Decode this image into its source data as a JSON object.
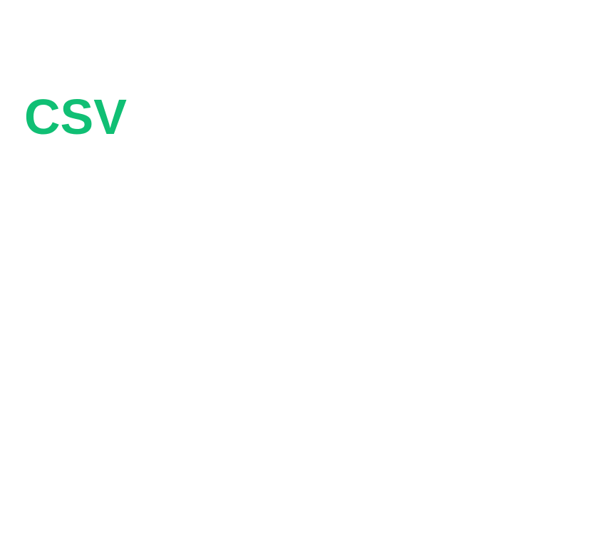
{
  "label": {
    "text": "CSV",
    "color": "#10BF74"
  }
}
